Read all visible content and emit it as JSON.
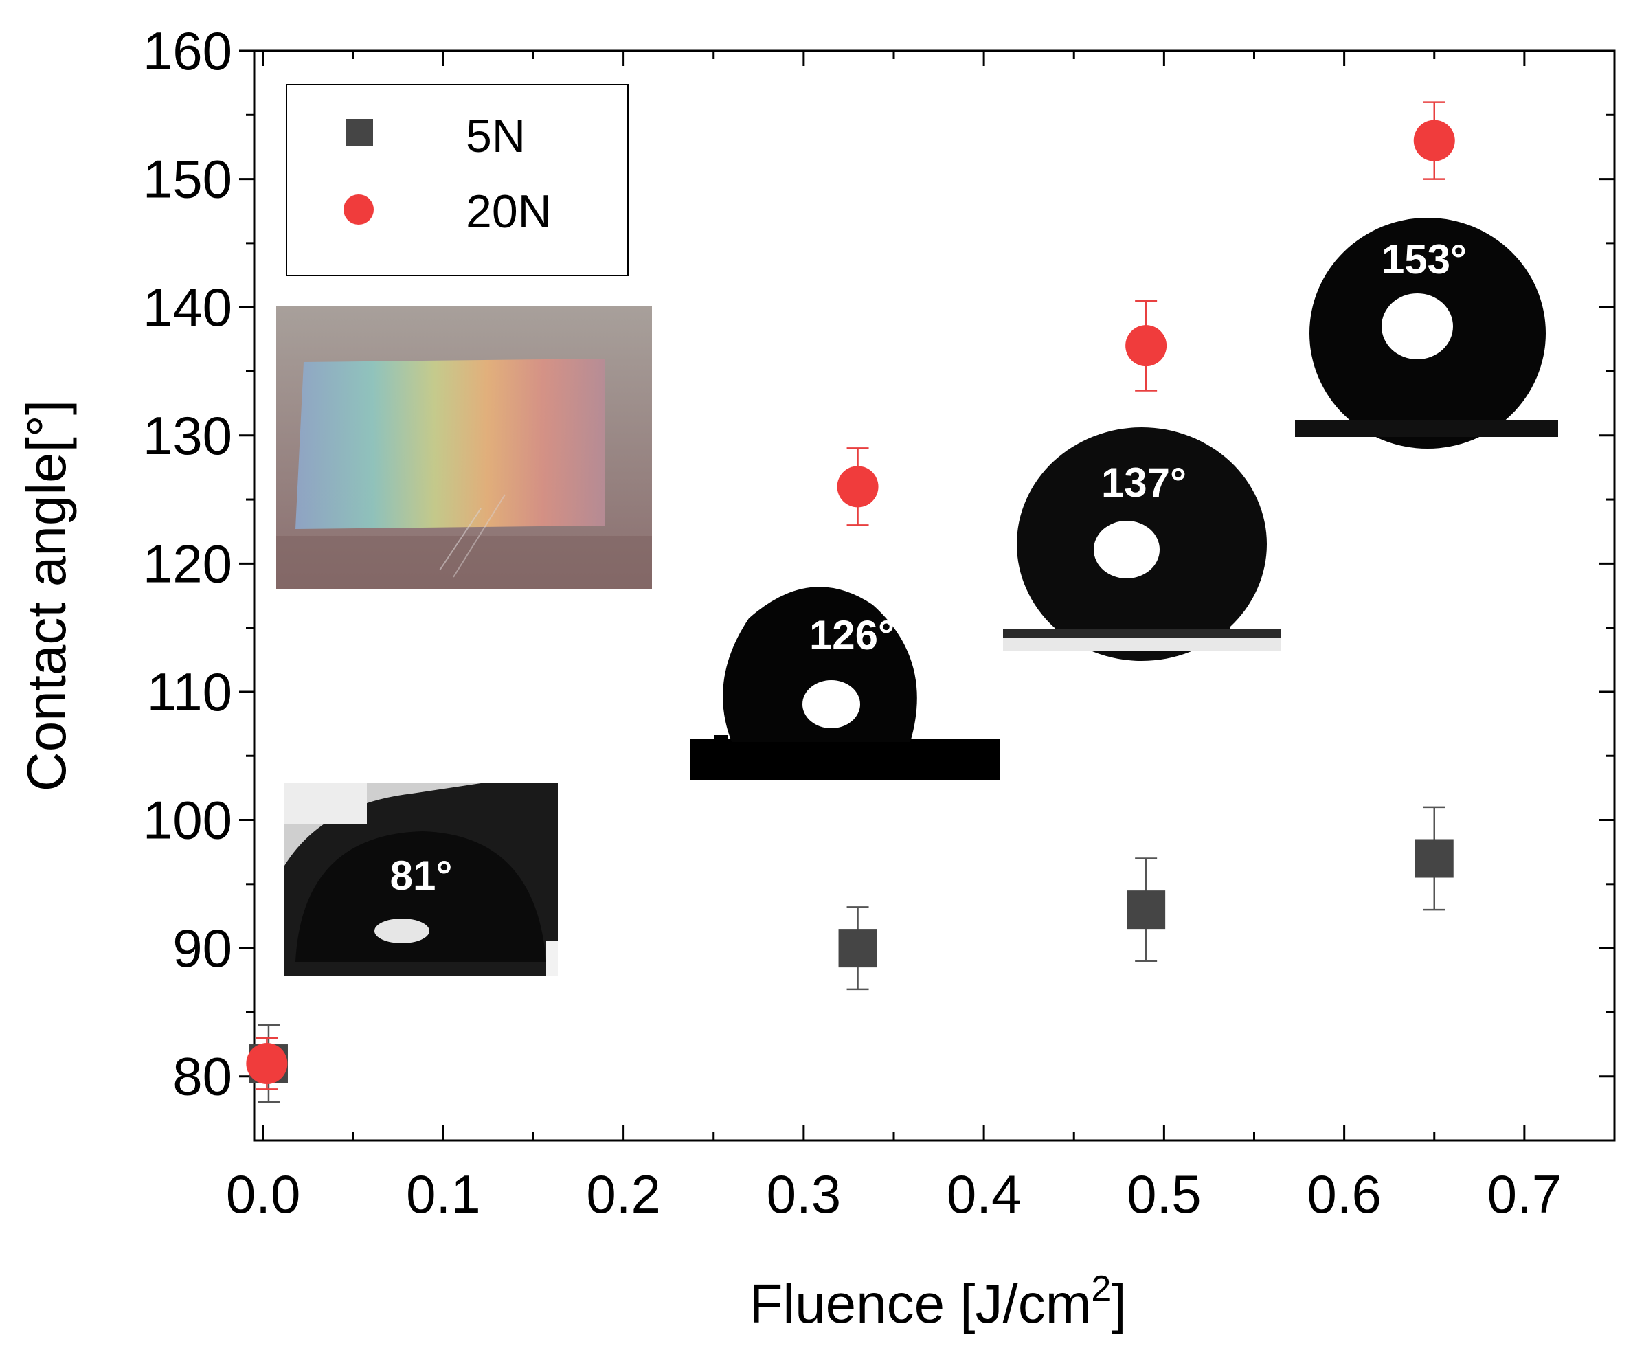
{
  "chart_data": {
    "type": "scatter",
    "title": "",
    "xlabel": "Fluence [J/cm",
    "xlabel_sup": "2",
    "xlabel_close": "]",
    "ylabel": "Contact angle[°]",
    "xlim": [
      -0.005,
      0.75
    ],
    "ylim": [
      75,
      160
    ],
    "xticks": [
      0.0,
      0.1,
      0.2,
      0.3,
      0.4,
      0.5,
      0.6,
      0.7
    ],
    "xtick_labels": [
      "0.0",
      "0.1",
      "0.2",
      "0.3",
      "0.4",
      "0.5",
      "0.6",
      "0.7"
    ],
    "yticks": [
      80,
      90,
      100,
      110,
      120,
      130,
      140,
      150,
      160
    ],
    "ytick_labels": [
      "80",
      "90",
      "100",
      "110",
      "120",
      "130",
      "140",
      "150",
      "160"
    ],
    "legend_position": "top-left",
    "series": [
      {
        "name": "5N",
        "marker": "square",
        "color": "#454545",
        "errcolor": "#555555",
        "x": [
          0.003,
          0.33,
          0.49,
          0.65
        ],
        "y": [
          81,
          90,
          93,
          97
        ],
        "err": [
          3,
          3.2,
          4,
          4
        ]
      },
      {
        "name": "20N",
        "marker": "circle",
        "color": "#f03c3c",
        "errcolor": "#e84040",
        "x": [
          0.002,
          0.33,
          0.49,
          0.65
        ],
        "y": [
          81,
          126,
          137,
          153
        ],
        "err": [
          2,
          3,
          3.5,
          3
        ]
      }
    ],
    "insets": [
      {
        "type": "photo",
        "name": "iridescent-sample-photo"
      },
      {
        "type": "droplet",
        "label": "81°"
      },
      {
        "type": "droplet",
        "label": "126°"
      },
      {
        "type": "droplet",
        "label": "137°"
      },
      {
        "type": "droplet",
        "label": "153°"
      }
    ]
  }
}
